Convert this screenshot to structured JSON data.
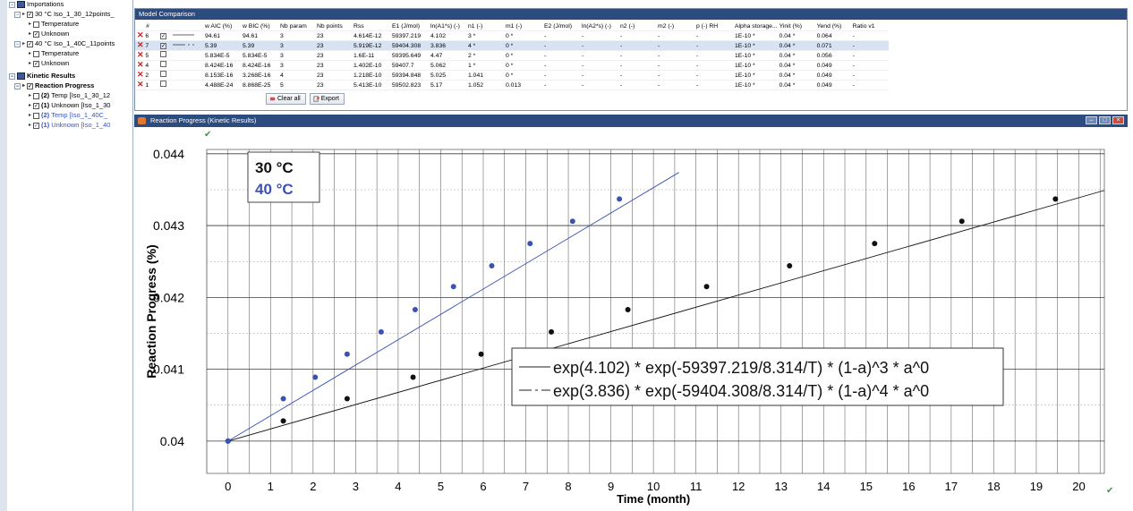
{
  "tree": {
    "importations": "Importations",
    "set30": "30 °C Iso_1_30_12points_",
    "temperature1": "Temperature",
    "unknown1": "Unknown",
    "set40": "40 °C Iso_1_40C_11points",
    "temperature2": "Temperature",
    "unknown2": "Unknown",
    "kinetic_results": "Kinetic Results",
    "reaction_progress": "Reaction Progress",
    "item_temp30_id": "(2)",
    "item_temp30": "Temp [Iso_1_30_12",
    "item_unknown30_id": "(1)",
    "item_unknown30": "Unknown [Iso_1_30",
    "item_temp40_id": "(2)",
    "item_temp40": "Temp [Iso_1_40C_",
    "item_unknown40_id": "(1)",
    "item_unknown40": "Unknown [Iso_1_40"
  },
  "model_comparison": {
    "title": "Model Comparison",
    "headers": [
      "#",
      "",
      "",
      "w AIC (%)",
      "w BIC (%)",
      "Nb param",
      "Nb points",
      "Rss",
      "E1 (J/mol)",
      "ln(A1*s) (-)",
      "n1 (-)",
      "m1 (-)",
      "E2 (J/mol)",
      "ln(A2*s) (-)",
      "n2 (-)",
      "m2 (-)",
      "p (-) RH",
      "Alpha storage...",
      "Yinit (%)",
      "Yend (%)",
      "Ratio v1"
    ],
    "rows": [
      [
        "6",
        "94.61",
        "94.61",
        "3",
        "23",
        "4.614E-12",
        "59397.219",
        "4.102",
        "3 *",
        "0 *",
        "-",
        "-",
        "-",
        "-",
        "-",
        "1E-10 *",
        "0.04 *",
        "0.064",
        "-"
      ],
      [
        "7",
        "5.39",
        "5.39",
        "3",
        "23",
        "5.919E-12",
        "59404.308",
        "3.836",
        "4 *",
        "0 *",
        "-",
        "-",
        "-",
        "-",
        "-",
        "1E-10 *",
        "0.04 *",
        "0.071",
        "-"
      ],
      [
        "5",
        "5.834E-5",
        "5.834E-5",
        "3",
        "23",
        "1.6E-11",
        "59395.649",
        "4.47",
        "2 *",
        "0 *",
        "-",
        "-",
        "-",
        "-",
        "-",
        "1E-10 *",
        "0.04 *",
        "0.056",
        "-"
      ],
      [
        "4",
        "8.424E-16",
        "8.424E-16",
        "3",
        "23",
        "1.402E-10",
        "59407.7",
        "5.062",
        "1 *",
        "0 *",
        "-",
        "-",
        "-",
        "-",
        "-",
        "1E-10 *",
        "0.04 *",
        "0.049",
        "-"
      ],
      [
        "2",
        "8.153E-16",
        "3.268E-16",
        "4",
        "23",
        "1.218E-10",
        "59394.848",
        "5.025",
        "1.041",
        "0 *",
        "-",
        "-",
        "-",
        "-",
        "-",
        "1E-10 *",
        "0.04 *",
        "0.049",
        "-"
      ],
      [
        "1",
        "4.488E-24",
        "8.868E-25",
        "5",
        "23",
        "5.413E-10",
        "59502.823",
        "5.17",
        "1.052",
        "0.013",
        "-",
        "-",
        "-",
        "-",
        "-",
        "1E-10 *",
        "0.04 *",
        "0.049",
        "-"
      ]
    ],
    "clear_all_label": "Clear all",
    "export_label": "Export"
  },
  "reaction_window": {
    "title": "Reaction Progress (Kinetic Results)"
  },
  "colors": {
    "series_30": "#111111",
    "series_40": "#3a52b4",
    "titlebar": "#2c4b7e"
  },
  "chart_data": {
    "type": "line",
    "xlabel": "Time (month)",
    "ylabel": "Reaction Progress (%)",
    "xlim": [
      -0.5,
      20.6
    ],
    "ylim": [
      0.03955,
      0.04406
    ],
    "x_ticks": [
      "0",
      "1",
      "2",
      "3",
      "4",
      "5",
      "6",
      "7",
      "8",
      "9",
      "10",
      "11",
      "12",
      "13",
      "14",
      "15",
      "16",
      "17",
      "18",
      "19",
      "20"
    ],
    "y_ticks": [
      "0.04",
      "0.041",
      "0.042",
      "0.043",
      "0.044"
    ],
    "grid": true,
    "legend_box_labels": [
      "30 °C",
      "40 °C"
    ],
    "legend_box_position": "top-left",
    "series": [
      {
        "name": "30 °C",
        "color": "#111111",
        "points": [
          [
            0,
            0.04
          ],
          [
            1.3,
            0.04028
          ],
          [
            2.8,
            0.04059
          ],
          [
            4.35,
            0.04089
          ],
          [
            5.95,
            0.04121
          ],
          [
            7.6,
            0.04152
          ],
          [
            9.4,
            0.04183
          ],
          [
            11.25,
            0.04215
          ],
          [
            13.2,
            0.04244
          ],
          [
            15.2,
            0.04275
          ],
          [
            17.25,
            0.04306
          ],
          [
            19.45,
            0.04337
          ]
        ],
        "line": [
          [
            0,
            0.04
          ],
          [
            20.6,
            0.04349
          ]
        ]
      },
      {
        "name": "40 °C",
        "color": "#3a52b4",
        "points": [
          [
            0,
            0.04
          ],
          [
            1.3,
            0.04059
          ],
          [
            2.05,
            0.04089
          ],
          [
            2.8,
            0.04121
          ],
          [
            3.6,
            0.04152
          ],
          [
            4.4,
            0.04183
          ],
          [
            5.3,
            0.04215
          ],
          [
            6.2,
            0.04244
          ],
          [
            7.1,
            0.04275
          ],
          [
            8.1,
            0.04306
          ],
          [
            9.2,
            0.04337
          ]
        ],
        "line": [
          [
            0,
            0.04
          ],
          [
            10.6,
            0.04374
          ]
        ]
      }
    ],
    "equations": [
      "exp(4.102) * exp(-59397.219/8.314/T) * (1-a)^3 * a^0",
      "exp(3.836) * exp(-59404.308/8.314/T) * (1-a)^4 * a^0"
    ]
  }
}
